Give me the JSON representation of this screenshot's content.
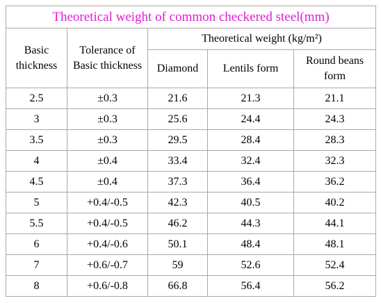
{
  "table": {
    "title": "Theoretical weight of common checkered steel(mm)",
    "headers": {
      "basic_thickness": "Basic thickness",
      "tolerance": "Tolerance of Basic thickness",
      "theoretical_weight": "Theoretical weight (kg/m²)",
      "diamond": "Diamond",
      "lentils": "Lentils form",
      "round_beans": "Round beans form"
    },
    "rows": [
      {
        "thickness": "2.5",
        "tolerance": "±0.3",
        "diamond": "21.6",
        "lentils": "21.3",
        "round": "21.1"
      },
      {
        "thickness": "3",
        "tolerance": "±0.3",
        "diamond": "25.6",
        "lentils": "24.4",
        "round": "24.3"
      },
      {
        "thickness": "3.5",
        "tolerance": "±0.3",
        "diamond": "29.5",
        "lentils": "28.4",
        "round": "28.3"
      },
      {
        "thickness": "4",
        "tolerance": "±0.4",
        "diamond": "33.4",
        "lentils": "32.4",
        "round": "32.3"
      },
      {
        "thickness": "4.5",
        "tolerance": "±0.4",
        "diamond": "37.3",
        "lentils": "36.4",
        "round": "36.2"
      },
      {
        "thickness": "5",
        "tolerance": "+0.4/-0.5",
        "diamond": "42.3",
        "lentils": "40.5",
        "round": "40.2"
      },
      {
        "thickness": "5.5",
        "tolerance": "+0.4/-0.5",
        "diamond": "46.2",
        "lentils": "44.3",
        "round": "44.1"
      },
      {
        "thickness": "6",
        "tolerance": "+0.4/-0.6",
        "diamond": "50.1",
        "lentils": "48.4",
        "round": "48.1"
      },
      {
        "thickness": "7",
        "tolerance": "+0.6/-0.7",
        "diamond": "59",
        "lentils": "52.6",
        "round": "52.4"
      },
      {
        "thickness": "8",
        "tolerance": "+0.6/-0.8",
        "diamond": "66.8",
        "lentils": "56.4",
        "round": "56.2"
      }
    ]
  },
  "colors": {
    "title": "#e11bd6",
    "border": "#a8a8a8",
    "text": "#000000"
  }
}
